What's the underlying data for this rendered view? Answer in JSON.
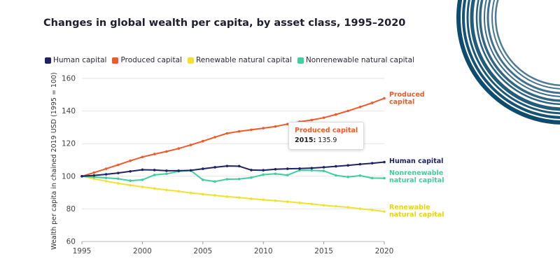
{
  "title": "Changes in global wealth per capita, by asset class, 1995–2020",
  "tooltip": {
    "series": "Produced capital",
    "year": "2015:",
    "value": "135.9"
  },
  "colors": {
    "human": "#1f2263",
    "produced": "#ef5a28",
    "renewable": "#f2e12f",
    "nonrenewable": "#3fcf9c",
    "decor": "#0d4c6e"
  },
  "chart_data": {
    "type": "line",
    "ylabel": "Wealth per capita in chained 2019 USD (1995 = 100)",
    "xlabel": "",
    "ylim": [
      60,
      160
    ],
    "yticks": [
      60,
      80,
      100,
      120,
      140,
      160
    ],
    "xticks": [
      1995,
      2000,
      2005,
      2010,
      2015,
      2020
    ],
    "x": [
      1995,
      1996,
      1997,
      1998,
      1999,
      2000,
      2001,
      2002,
      2003,
      2004,
      2005,
      2006,
      2007,
      2008,
      2009,
      2010,
      2011,
      2012,
      2013,
      2014,
      2015,
      2016,
      2017,
      2018,
      2019,
      2020
    ],
    "grid": "horizontal",
    "legend_position": "top-left",
    "series": [
      {
        "key": "human",
        "name": "Human capital",
        "label": "Human capital",
        "values": [
          100,
          100.5,
          101.2,
          102,
          103,
          104,
          103.8,
          103.4,
          103.4,
          103.6,
          104.6,
          105.5,
          106.3,
          106.2,
          103.8,
          103.7,
          104.3,
          104.6,
          104.7,
          105,
          105.5,
          106.1,
          106.7,
          107.4,
          108,
          108.7
        ]
      },
      {
        "key": "produced",
        "name": "Produced capital",
        "label": "Produced\ncapital",
        "values": [
          100,
          102.2,
          104.6,
          107,
          109.5,
          111.8,
          113.6,
          115.2,
          117,
          119.2,
          121.5,
          124,
          126.3,
          127.5,
          128.5,
          129.5,
          130.5,
          132,
          133.4,
          134.5,
          135.9,
          137.9,
          140.1,
          142.5,
          145,
          147.8
        ]
      },
      {
        "key": "renewable",
        "name": "Renewable natural capital",
        "label": "Renewable\nnatural capital",
        "values": [
          100,
          98.5,
          97,
          95.7,
          94.5,
          93.5,
          92.5,
          91.6,
          90.8,
          89.8,
          89,
          88.3,
          87.5,
          86.9,
          86.2,
          85.6,
          85,
          84.4,
          83.7,
          83,
          82.2,
          81.6,
          81,
          80.1,
          79.3,
          78.4
        ]
      },
      {
        "key": "nonrenewable",
        "name": "Nonrenewable natural capital",
        "label": "Nonrenewable\nnatural capital",
        "values": [
          100,
          99.5,
          99,
          98.5,
          97.3,
          97.8,
          100.8,
          101.5,
          103,
          103.5,
          97.8,
          96.8,
          98.2,
          98.3,
          99.2,
          101,
          101.5,
          100.7,
          103.7,
          103.6,
          103.3,
          100.5,
          99.6,
          100.4,
          98.9,
          98.8
        ]
      }
    ]
  }
}
